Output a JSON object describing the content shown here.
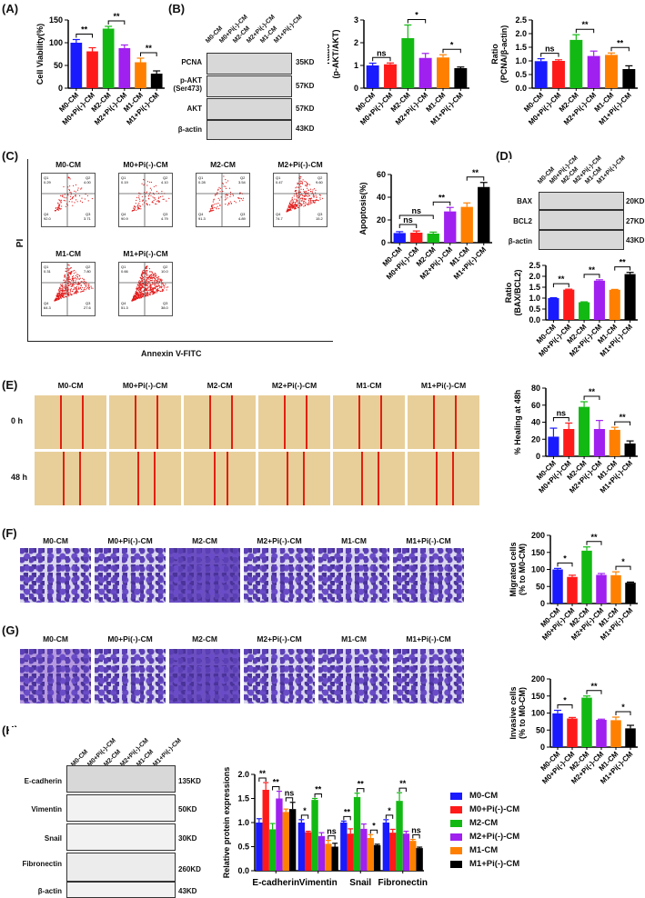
{
  "panels": {
    "A": "(A)",
    "B": "(B)",
    "C": "(C)",
    "D": "(D)",
    "E": "(E)",
    "F": "(F)",
    "G": "(G)",
    "H": "(H)"
  },
  "groups": [
    "M0-CM",
    "M0+Pi(-)-CM",
    "M2-CM",
    "M2+Pi(-)-CM",
    "M1-CM",
    "M1+Pi(-)-CM"
  ],
  "colors": [
    "#1a1aff",
    "#ff1a1a",
    "#13b913",
    "#a020f0",
    "#ff8000",
    "#000000"
  ],
  "westernB": {
    "rows": [
      {
        "label": "PCNA",
        "kd": "35KD"
      },
      {
        "label": "p-AKT\n(Ser473)",
        "kd": "57KD"
      },
      {
        "label": "AKT",
        "kd": "57KD"
      },
      {
        "label": "β-actin",
        "kd": "43KD"
      }
    ]
  },
  "westernD": {
    "rows": [
      {
        "label": "BAX",
        "kd": "20KD"
      },
      {
        "label": "BCL2",
        "kd": "27KD"
      },
      {
        "label": "β-actin",
        "kd": "43KD"
      }
    ]
  },
  "westernH": {
    "rows": [
      {
        "label": "E-cadherin",
        "kd": "135KD"
      },
      {
        "label": "Vimentin",
        "kd": "50KD"
      },
      {
        "label": "Snail",
        "kd": "30KD"
      },
      {
        "label": "Fibronectin",
        "kd": "260KD"
      },
      {
        "label": "β-actin",
        "kd": "43KD"
      }
    ]
  },
  "flow": {
    "ylabel": "PI",
    "xlabel": "Annexin V-FITC",
    "yticks": [
      "10^5",
      "10^4",
      "0",
      "-10^4"
    ],
    "xticks": [
      "0",
      "10^5",
      "10^7"
    ],
    "plots": [
      {
        "title": "M0-CM",
        "Q1": "0.29",
        "Q2": "4.00",
        "Q3": "3.71",
        "Q4": "92.0"
      },
      {
        "title": "M0+Pi(-)-CM",
        "Q1": "0.19",
        "Q2": "4.10",
        "Q3": "4.79",
        "Q4": "90.9"
      },
      {
        "title": "M2-CM",
        "Q1": "0.28",
        "Q2": "3.54",
        "Q3": "4.89",
        "Q4": "91.3"
      },
      {
        "title": "M2+Pi(-)-CM",
        "Q1": "0.47",
        "Q2": "9.60",
        "Q3": "15.2",
        "Q4": "74.7"
      },
      {
        "title": "M1-CM",
        "Q1": "0.31",
        "Q2": "7.80",
        "Q3": "27.6",
        "Q4": "64.3"
      },
      {
        "title": "M1+Pi(-)-CM",
        "Q1": "0.66",
        "Q2": "10.0",
        "Q3": "38.0",
        "Q4": "51.3"
      }
    ]
  },
  "wound": {
    "rows": [
      "0 h",
      "48 h"
    ],
    "titles": [
      "M0-CM",
      "M0+Pi(-)-CM",
      "M2-CM",
      "M2+Pi(-)-CM",
      "M1-CM",
      "M1+Pi(-)-CM"
    ]
  },
  "transwellF": {
    "titles": [
      "M0-CM",
      "M0+Pi(-)-CM",
      "M2-CM",
      "M2+Pi(-)-CM",
      "M1-CM",
      "M1+Pi(-)-CM"
    ]
  },
  "transwellG": {
    "titles": [
      "M0-CM",
      "M0+Pi(-)-CM",
      "M2-CM",
      "M2+Pi(-)-CM",
      "M1-CM",
      "M1+Pi(-)-CM"
    ]
  },
  "chart_data": [
    {
      "id": "A",
      "type": "bar",
      "title": "",
      "ylabel": "Cell Viability(%)",
      "categories": [
        "M0-CM",
        "M0+Pi(-)-CM",
        "M2-CM",
        "M2+Pi(-)-CM",
        "M1-CM",
        "M1+Pi(-)-CM"
      ],
      "values": [
        100,
        81,
        131,
        88,
        57,
        32
      ],
      "errors": [
        7,
        8,
        5,
        7,
        9,
        6
      ],
      "ylim": [
        0,
        150
      ],
      "yticks": [
        0,
        50,
        100,
        150
      ],
      "significance": [
        {
          "pair": [
            0,
            1
          ],
          "label": "**"
        },
        {
          "pair": [
            2,
            3
          ],
          "label": "**"
        },
        {
          "pair": [
            4,
            5
          ],
          "label": "**"
        }
      ]
    },
    {
      "id": "B1",
      "type": "bar",
      "ylabel": "Ratio\n(p-AKT/AKT)",
      "categories": [
        "M0-CM",
        "M0+Pi(-)-CM",
        "M2-CM",
        "M2+Pi(-)-CM",
        "M1-CM",
        "M1+Pi(-)-CM"
      ],
      "values": [
        1.0,
        1.05,
        2.2,
        1.33,
        1.35,
        0.88
      ],
      "errors": [
        0.1,
        0.06,
        0.58,
        0.2,
        0.12,
        0.05
      ],
      "ylim": [
        0,
        3
      ],
      "yticks": [
        0,
        1,
        2,
        3
      ],
      "significance": [
        {
          "pair": [
            0,
            1
          ],
          "label": "ns"
        },
        {
          "pair": [
            2,
            3
          ],
          "label": "*"
        },
        {
          "pair": [
            4,
            5
          ],
          "label": "*"
        }
      ]
    },
    {
      "id": "B2",
      "type": "bar",
      "ylabel": "Ratio\n(PCNA/β-actin)",
      "categories": [
        "M0-CM",
        "M0+Pi(-)-CM",
        "M2-CM",
        "M2+Pi(-)-CM",
        "M1-CM",
        "M1+Pi(-)-CM"
      ],
      "values": [
        0.99,
        1.0,
        1.77,
        1.18,
        1.22,
        0.7
      ],
      "errors": [
        0.09,
        0.04,
        0.19,
        0.18,
        0.07,
        0.12
      ],
      "ylim": [
        0,
        2.5
      ],
      "yticks": [
        0.0,
        0.5,
        1.0,
        1.5,
        2.0,
        2.5
      ],
      "significance": [
        {
          "pair": [
            0,
            1
          ],
          "label": "ns"
        },
        {
          "pair": [
            2,
            3
          ],
          "label": "**"
        },
        {
          "pair": [
            4,
            5
          ],
          "label": "**"
        }
      ]
    },
    {
      "id": "C",
      "type": "bar",
      "ylabel": "Apoptosis(%)",
      "categories": [
        "M0-CM",
        "M0+Pi(-)-CM",
        "M2-CM",
        "M2+Pi(-)-CM",
        "M1-CM",
        "M1+Pi(-)-CM"
      ],
      "values": [
        8.5,
        8.8,
        8.0,
        27.5,
        31.5,
        49
      ],
      "errors": [
        1.2,
        1.5,
        1.3,
        3.5,
        3.5,
        4
      ],
      "ylim": [
        0,
        60
      ],
      "yticks": [
        0,
        20,
        40,
        60
      ],
      "significance": [
        {
          "pair": [
            0,
            1
          ],
          "label": "ns"
        },
        {
          "pair": [
            0,
            2
          ],
          "label": "ns"
        },
        {
          "pair": [
            2,
            3
          ],
          "label": "**"
        },
        {
          "pair": [
            4,
            5
          ],
          "label": "**"
        }
      ]
    },
    {
      "id": "D",
      "type": "bar",
      "ylabel": "Ratio\n(BAX/BCL2)",
      "categories": [
        "M0-CM",
        "M0+Pi(-)-CM",
        "M2-CM",
        "M2+Pi(-)-CM",
        "M1-CM",
        "M1+Pi(-)-CM"
      ],
      "values": [
        1.0,
        1.39,
        0.81,
        1.8,
        1.38,
        2.1
      ],
      "errors": [
        0.02,
        0.02,
        0.02,
        0.04,
        0.02,
        0.08
      ],
      "ylim": [
        0,
        2.5
      ],
      "yticks": [
        0.0,
        0.5,
        1.0,
        1.5,
        2.0,
        2.5
      ],
      "significance": [
        {
          "pair": [
            0,
            1
          ],
          "label": "**"
        },
        {
          "pair": [
            2,
            3
          ],
          "label": "**"
        },
        {
          "pair": [
            4,
            5
          ],
          "label": "**"
        }
      ]
    },
    {
      "id": "E",
      "type": "bar",
      "ylabel": "% Healing at 48h",
      "categories": [
        "M0-CM",
        "M0+Pi(-)-CM",
        "M2-CM",
        "M2+Pi(-)-CM",
        "M1-CM",
        "M1+Pi(-)-CM"
      ],
      "values": [
        23,
        32,
        58,
        32,
        31,
        15
      ],
      "errors": [
        10,
        7,
        6,
        10,
        3,
        3
      ],
      "ylim": [
        0,
        80
      ],
      "yticks": [
        0,
        20,
        40,
        60,
        80
      ],
      "significance": [
        {
          "pair": [
            0,
            1
          ],
          "label": "ns"
        },
        {
          "pair": [
            2,
            3
          ],
          "label": "**"
        },
        {
          "pair": [
            4,
            5
          ],
          "label": "**"
        }
      ]
    },
    {
      "id": "F",
      "type": "bar",
      "ylabel": "Migrated cells\n(% to M0-CM)",
      "categories": [
        "M0-CM",
        "M0+Pi(-)-CM",
        "M2-CM",
        "M2+Pi(-)-CM",
        "M1-CM",
        "M1+Pi(-)-CM"
      ],
      "values": [
        100,
        78,
        155,
        84,
        83,
        61
      ],
      "errors": [
        3,
        5,
        11,
        4,
        10,
        2
      ],
      "ylim": [
        0,
        200
      ],
      "yticks": [
        0,
        50,
        100,
        150,
        200
      ],
      "significance": [
        {
          "pair": [
            0,
            1
          ],
          "label": "*"
        },
        {
          "pair": [
            2,
            3
          ],
          "label": "**"
        },
        {
          "pair": [
            4,
            5
          ],
          "label": "*"
        }
      ]
    },
    {
      "id": "G",
      "type": "bar",
      "ylabel": "Invasive cells\n(% to M0-CM)",
      "categories": [
        "M0-CM",
        "M0+Pi(-)-CM",
        "M2-CM",
        "M2+Pi(-)-CM",
        "M1-CM",
        "M1+Pi(-)-CM"
      ],
      "values": [
        99,
        84,
        145,
        80,
        79,
        55
      ],
      "errors": [
        9,
        3,
        5,
        2,
        9,
        9
      ],
      "ylim": [
        0,
        200
      ],
      "yticks": [
        0,
        50,
        100,
        150,
        200
      ],
      "significance": [
        {
          "pair": [
            0,
            1
          ],
          "label": "*"
        },
        {
          "pair": [
            2,
            3
          ],
          "label": "**"
        },
        {
          "pair": [
            4,
            5
          ],
          "label": "*"
        }
      ]
    },
    {
      "id": "H",
      "type": "bar",
      "ylabel": "Relative protein expressions",
      "categories": [
        "E-cadherin",
        "Vimentin",
        "Snail",
        "Fibronectin"
      ],
      "series": [
        {
          "name": "M0-CM",
          "values": [
            1.0,
            1.0,
            1.0,
            1.0
          ],
          "errors": [
            0.08,
            0.06,
            0.03,
            0.06
          ]
        },
        {
          "name": "M0+Pi(-)-CM",
          "values": [
            1.68,
            0.8,
            0.77,
            0.79
          ],
          "errors": [
            0.15,
            0.02,
            0.1,
            0.07
          ]
        },
        {
          "name": "M2-CM",
          "values": [
            0.86,
            1.47,
            1.53,
            1.45
          ],
          "errors": [
            0.12,
            0.03,
            0.08,
            0.17
          ]
        },
        {
          "name": "M2+Pi(-)-CM",
          "values": [
            1.5,
            0.72,
            0.87,
            0.77
          ],
          "errors": [
            0.15,
            0.07,
            0.1,
            0.05
          ]
        },
        {
          "name": "M1-CM",
          "values": [
            1.22,
            0.56,
            0.68,
            0.62
          ],
          "errors": [
            0.06,
            0.07,
            0.07,
            0.03
          ]
        },
        {
          "name": "M1+Pi(-)-CM",
          "values": [
            1.28,
            0.5,
            0.53,
            0.47
          ],
          "errors": [
            0.14,
            0.07,
            0.02,
            0.02
          ]
        }
      ],
      "ylim": [
        0,
        2.0
      ],
      "yticks": [
        0.0,
        0.5,
        1.0,
        1.5,
        2.0
      ],
      "significance": [
        {
          "cat": 0,
          "pair": [
            0,
            1
          ],
          "label": "**"
        },
        {
          "cat": 0,
          "pair": [
            2,
            3
          ],
          "label": "**"
        },
        {
          "cat": 0,
          "pair": [
            4,
            5
          ],
          "label": "ns"
        },
        {
          "cat": 1,
          "pair": [
            0,
            1
          ],
          "label": "*"
        },
        {
          "cat": 1,
          "pair": [
            2,
            3
          ],
          "label": "**"
        },
        {
          "cat": 1,
          "pair": [
            4,
            5
          ],
          "label": "ns"
        },
        {
          "cat": 2,
          "pair": [
            0,
            1
          ],
          "label": "**"
        },
        {
          "cat": 2,
          "pair": [
            2,
            3
          ],
          "label": "**"
        },
        {
          "cat": 2,
          "pair": [
            4,
            5
          ],
          "label": "*"
        },
        {
          "cat": 3,
          "pair": [
            0,
            1
          ],
          "label": "*"
        },
        {
          "cat": 3,
          "pair": [
            2,
            3
          ],
          "label": "**"
        },
        {
          "cat": 3,
          "pair": [
            4,
            5
          ],
          "label": "ns"
        }
      ],
      "legend": [
        "M0-CM",
        "M0+Pi(-)-CM",
        "M2-CM",
        "M2+Pi(-)-CM",
        "M1-CM",
        "M1+Pi(-)-CM"
      ]
    }
  ]
}
